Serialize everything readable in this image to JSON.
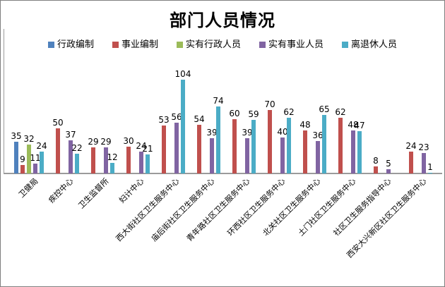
{
  "title": "部门人员情况",
  "colors": {
    "border": "#7F7F7F",
    "axis_line": "#9B9B9B",
    "background": "#FFFFFF",
    "label_text": "#000000"
  },
  "legend": {
    "items": [
      {
        "label": "行政编制",
        "color": "#4F81BD"
      },
      {
        "label": "事业编制",
        "color": "#C0504D"
      },
      {
        "label": "实有行政人员",
        "color": "#9BBB59"
      },
      {
        "label": "实有事业人员",
        "color": "#8064A2"
      },
      {
        "label": "离退休人员",
        "color": "#4BACC6"
      }
    ]
  },
  "chart_data": {
    "type": "bar",
    "title": "部门人员情况",
    "categories": [
      "卫健局",
      "疾控中心",
      "卫生监督所",
      "妇计中心",
      "西大街社区卫生服务中心",
      "庙后街社区卫生服务中心",
      "青年路社区卫生服务中心",
      "环西社区卫生服务中心",
      "北关社区卫生服务中心",
      "土门社区卫生服务中心",
      "社区卫生服务指导中心",
      "西安大兴新区社区卫生服务中心"
    ],
    "series": [
      {
        "name": "行政编制",
        "color": "#4F81BD",
        "values": [
          35,
          null,
          null,
          null,
          null,
          null,
          null,
          null,
          null,
          null,
          null,
          null
        ]
      },
      {
        "name": "事业编制",
        "color": "#C0504D",
        "values": [
          9,
          50,
          29,
          30,
          53,
          54,
          60,
          70,
          48,
          62,
          8,
          24
        ]
      },
      {
        "name": "实有行政人员",
        "color": "#9BBB59",
        "values": [
          32,
          null,
          null,
          null,
          null,
          null,
          null,
          null,
          null,
          null,
          null,
          null
        ]
      },
      {
        "name": "实有事业人员",
        "color": "#8064A2",
        "values": [
          11,
          37,
          29,
          24,
          56,
          39,
          39,
          40,
          36,
          48,
          5,
          23
        ]
      },
      {
        "name": "离退休人员",
        "color": "#4BACC6",
        "values": [
          24,
          22,
          12,
          21,
          104,
          74,
          59,
          62,
          65,
          47,
          null,
          1
        ]
      }
    ],
    "ylim": [
      0,
      125
    ],
    "grid": false,
    "value_labels": true,
    "legend_position": "top",
    "x_label_rotation": -45
  }
}
